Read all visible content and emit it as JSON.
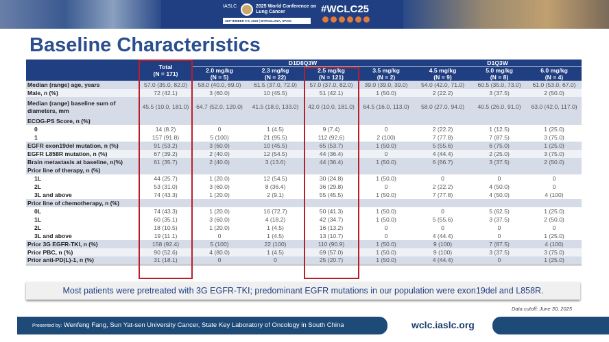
{
  "banner": {
    "org": "IASLC",
    "conference": "2025 World Conference on Lung Cancer",
    "dates": "SEPTEMBER 6-9, 2025 | BARCELONA, SPAIN",
    "hashtag": "#WCLC25",
    "social_icons": [
      "facebook-icon",
      "linkedin-icon",
      "x-icon",
      "instagram-icon",
      "youtube-icon",
      "wechat-icon"
    ]
  },
  "title": "Baseline Characteristics",
  "table": {
    "groups": [
      "D1D8Q3W",
      "D1Q3W"
    ],
    "total_header": [
      "Total",
      "(N = 171)"
    ],
    "dose_headers": [
      [
        "2.0 mg/kg",
        "(N = 5)"
      ],
      [
        "2.3 mg/kg",
        "(N = 22)"
      ],
      [
        "2.5 mg/kg",
        "(N = 121)"
      ],
      [
        "3.5 mg/kg",
        "(N = 2)"
      ],
      [
        "4.5 mg/kg",
        "(N = 9)"
      ],
      [
        "5.0 mg/kg",
        "(N = 8)"
      ],
      [
        "6.0 mg/kg",
        "(N = 4)"
      ]
    ],
    "rows": [
      {
        "label": "Median (range) age, years",
        "values": [
          "57.0 (35.0, 82.0)",
          "58.0 (40.0, 69.0)",
          "61.5 (37.0, 72.0)",
          "57.0 (37.0, 82.0)",
          "39.0 (39.0, 39.0)",
          "54.0 (42.0, 71.0)",
          "60.5 (35.0, 73.0)",
          "61.0 (53.0, 67.0)"
        ]
      },
      {
        "label": "Male, n (%)",
        "values": [
          "72 (42.1)",
          "3 (60.0)",
          "10 (45.5)",
          "51 (42.1)",
          "1 (50.0)",
          "2 (22.2)",
          "3 (37.5)",
          "2 (50.0)"
        ]
      },
      {
        "label": "Median (range) baseline sum of diameters, mm",
        "values": [
          "45.5 (10.0, 181.0)",
          "64.7 (52.0, 120.0)",
          "41.5 (18.0, 133.0)",
          "42.0 (10.0, 181.0)",
          "64.5 (16.0, 113.0)",
          "58.0 (27.0, 94.0)",
          "40.5 (26.0, 91.0)",
          "63.0 (42.0, 117.0)"
        ]
      },
      {
        "label": "ECOG-PS Score, n (%)",
        "values": [
          "",
          "",
          "",
          "",
          "",
          "",
          "",
          ""
        ]
      },
      {
        "label": "0",
        "sub": true,
        "values": [
          "14 (8.2)",
          "0",
          "1 (4.5)",
          "9 (7.4)",
          "0",
          "2 (22.2)",
          "1 (12.5)",
          "1 (25.0)"
        ]
      },
      {
        "label": "1",
        "sub": true,
        "values": [
          "157 (91.8)",
          "5 (100)",
          "21 (95.5)",
          "112 (92.6)",
          "2 (100)",
          "7 (77.8)",
          "7 (87.5)",
          "3 (75.0)"
        ]
      },
      {
        "label": "EGFR exon19del mutation, n (%)",
        "values": [
          "91 (53.2)",
          "3 (60.0)",
          "10 (45.5)",
          "65 (53.7)",
          "1 (50.0)",
          "5 (55.6)",
          "6 (75.0)",
          "1 (25.0)"
        ]
      },
      {
        "label": "EGFR L858R mutation, n (%)",
        "values": [
          "67 (39.2)",
          "2 (40.0)",
          "12 (54.5)",
          "44 (36.4)",
          "0",
          "4 (44.4)",
          "2 (25.0)",
          "3 (75.0)"
        ]
      },
      {
        "label": "Brain metastasis at baseline, n(%)",
        "values": [
          "61 (35.7)",
          "2 (40.0)",
          "3 (13.6)",
          "44 (36.4)",
          "1 (50.0)",
          "6 (66.7)",
          "3 (37.5)",
          "2 (50.0)"
        ]
      },
      {
        "label": "Prior line of therapy, n (%)",
        "values": [
          "",
          "",
          "",
          "",
          "",
          "",
          "",
          ""
        ]
      },
      {
        "label": "1L",
        "sub": true,
        "values": [
          "44 (25.7)",
          "1 (20.0)",
          "12 (54.5)",
          "30 (24.8)",
          "1 (50.0)",
          "0",
          "0",
          "0"
        ]
      },
      {
        "label": "2L",
        "sub": true,
        "values": [
          "53 (31.0)",
          "3 (60.0)",
          "8 (36.4)",
          "36 (29.8)",
          "0",
          "2 (22.2)",
          "4 (50.0)",
          "0"
        ]
      },
      {
        "label": "3L and above",
        "sub": true,
        "values": [
          "74 (43.3)",
          "1 (20.0)",
          "2 (9.1)",
          "55 (45.5)",
          "1 (50.0)",
          "7 (77.8)",
          "4 (50.0)",
          "4 (100)"
        ]
      },
      {
        "label": "Prior line of chemotherapy, n (%)",
        "values": [
          "",
          "",
          "",
          "",
          "",
          "",
          "",
          ""
        ]
      },
      {
        "label": "0L",
        "sub": true,
        "values": [
          "74 (43.3)",
          "1 (20.0)",
          "16 (72.7)",
          "50 (41.3)",
          "1 (50.0)",
          "0",
          "5 (62.5)",
          "1 (25.0)"
        ]
      },
      {
        "label": "1L",
        "sub": true,
        "values": [
          "60 (35.1)",
          "3 (60.0)",
          "4 (18.2)",
          "42 (34.7)",
          "1 (50.0)",
          "5 (55.6)",
          "3 (37.5)",
          "2 (50.0)"
        ]
      },
      {
        "label": "2L",
        "sub": true,
        "values": [
          "18 (10.5)",
          "1 (20.0)",
          "1 (4.5)",
          "16 (13.2)",
          "0",
          "0",
          "0",
          "0"
        ]
      },
      {
        "label": "3L and above",
        "sub": true,
        "values": [
          "19 (11.1)",
          "0",
          "1 (4.5)",
          "13 (10.7)",
          "0",
          "4 (44.4)",
          "0",
          "1 (25.0)"
        ]
      },
      {
        "label": "Prior 3G EGFR-TKI, n (%)",
        "values": [
          "158 (92.4)",
          "5 (100)",
          "22 (100)",
          "110 (90.9)",
          "1 (50.0)",
          "9 (100)",
          "7 (87.5)",
          "4 (100)"
        ]
      },
      {
        "label": "Prior PBC, n (%)",
        "values": [
          "90 (52.6)",
          "4 (80.0)",
          "1 (4.5)",
          "69 (57.0)",
          "1 (50.0)",
          "9 (100)",
          "3 (37.5)",
          "3 (75.0)"
        ]
      },
      {
        "label": "Prior anti-PD(L)-1, n (%)",
        "values": [
          "31 (18.1)",
          "0",
          "0",
          "25 (20.7)",
          "1 (50.0)",
          "4 (44.4)",
          "0",
          "1 (25.0)"
        ]
      }
    ]
  },
  "message": "Most patients were pretreated with 3G EGFR-TKI; predominant EGFR mutations in our population were exon19del and L858R.",
  "data_cutoff": "Data cutoff: June 30, 2025",
  "footer": {
    "presented_by_label": "Presented by:",
    "presenters": "Wenfeng Fang, Sun Yat-sen University Cancer, State Key Laboratory of Oncology in South China",
    "url": "wclc.iaslc.org"
  },
  "colors": {
    "brand_blue": "#1f3f82",
    "highlight_red": "#b81f2a",
    "shaded_row": "#d5dbe7"
  }
}
